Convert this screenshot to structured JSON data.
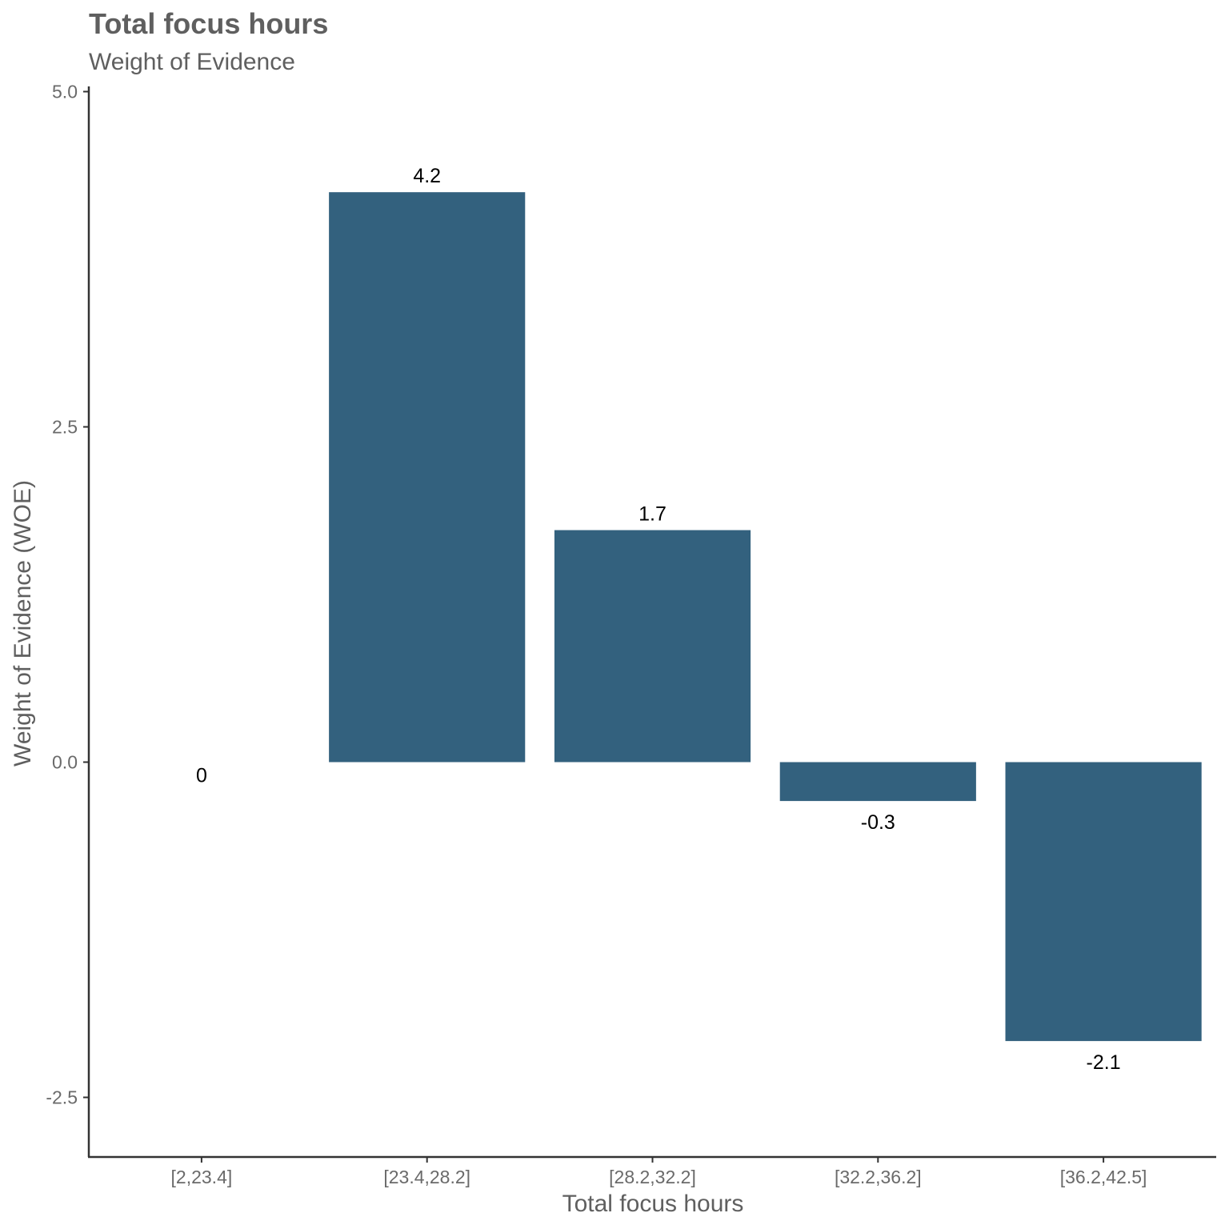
{
  "chart_data": {
    "type": "bar",
    "title": "Total focus hours",
    "subtitle": "Weight of Evidence",
    "xlabel": "Total focus hours",
    "ylabel": "Weight of Evidence (WOE)",
    "categories": [
      "[2,23.4]",
      "[23.4,28.2]",
      "[28.2,32.2]",
      "[32.2,36.2]",
      "[36.2,42.5]"
    ],
    "values": [
      0,
      4.25,
      1.73,
      -0.29,
      -2.08
    ],
    "data_labels": [
      "0",
      "4.2",
      "1.7",
      "-0.3",
      "-2.1"
    ],
    "yticks": [
      -2.5,
      0,
      2.5,
      5
    ],
    "ytick_labels": [
      "-2.5",
      "0.0",
      "2.5",
      "5.0"
    ],
    "ylim": [
      -2.93,
      5.0
    ],
    "grid": false,
    "legend": "none",
    "bar_color": "#33617e"
  }
}
